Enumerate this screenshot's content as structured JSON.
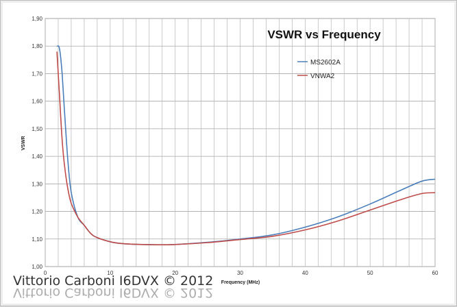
{
  "chart_data": {
    "type": "line",
    "title": "VSWR vs Frequency",
    "xlabel": "Frequency (MHz)",
    "ylabel": "VSWR",
    "xlim": [
      0,
      60
    ],
    "ylim": [
      1.0,
      1.9
    ],
    "xticks": [
      "0",
      "10",
      "20",
      "30",
      "40",
      "50",
      "60"
    ],
    "yticks": [
      "1,00",
      "1,10",
      "1,20",
      "1,30",
      "1,40",
      "1,50",
      "1,60",
      "1,70",
      "1,80",
      "1,90"
    ],
    "grid": true,
    "legend_position": "top-right",
    "series": [
      {
        "name": "MS2602A",
        "color": "#4a7ebb",
        "x": [
          1.8,
          2.2,
          2.6,
          3,
          3.5,
          4,
          5,
          6,
          7,
          8,
          10,
          12,
          15,
          18,
          20,
          25,
          30,
          35,
          40,
          45,
          50,
          55,
          58,
          60
        ],
        "y": [
          1.8,
          1.79,
          1.7,
          1.55,
          1.38,
          1.27,
          1.18,
          1.15,
          1.12,
          1.105,
          1.09,
          1.083,
          1.08,
          1.079,
          1.08,
          1.088,
          1.1,
          1.115,
          1.143,
          1.18,
          1.227,
          1.28,
          1.31,
          1.317
        ]
      },
      {
        "name": "VNWA2",
        "color": "#be4b48",
        "x": [
          1.8,
          2.2,
          2.6,
          3,
          3.5,
          4,
          5,
          6,
          7,
          8,
          10,
          12,
          15,
          18,
          20,
          25,
          30,
          35,
          40,
          45,
          50,
          55,
          58,
          60
        ],
        "y": [
          1.78,
          1.62,
          1.46,
          1.36,
          1.28,
          1.23,
          1.18,
          1.15,
          1.12,
          1.105,
          1.09,
          1.083,
          1.08,
          1.079,
          1.08,
          1.087,
          1.098,
          1.11,
          1.133,
          1.165,
          1.205,
          1.245,
          1.265,
          1.268
        ]
      }
    ]
  },
  "watermark": {
    "text": "Vittorio Carboni I6DVX © 2012",
    "color": "#333333"
  }
}
